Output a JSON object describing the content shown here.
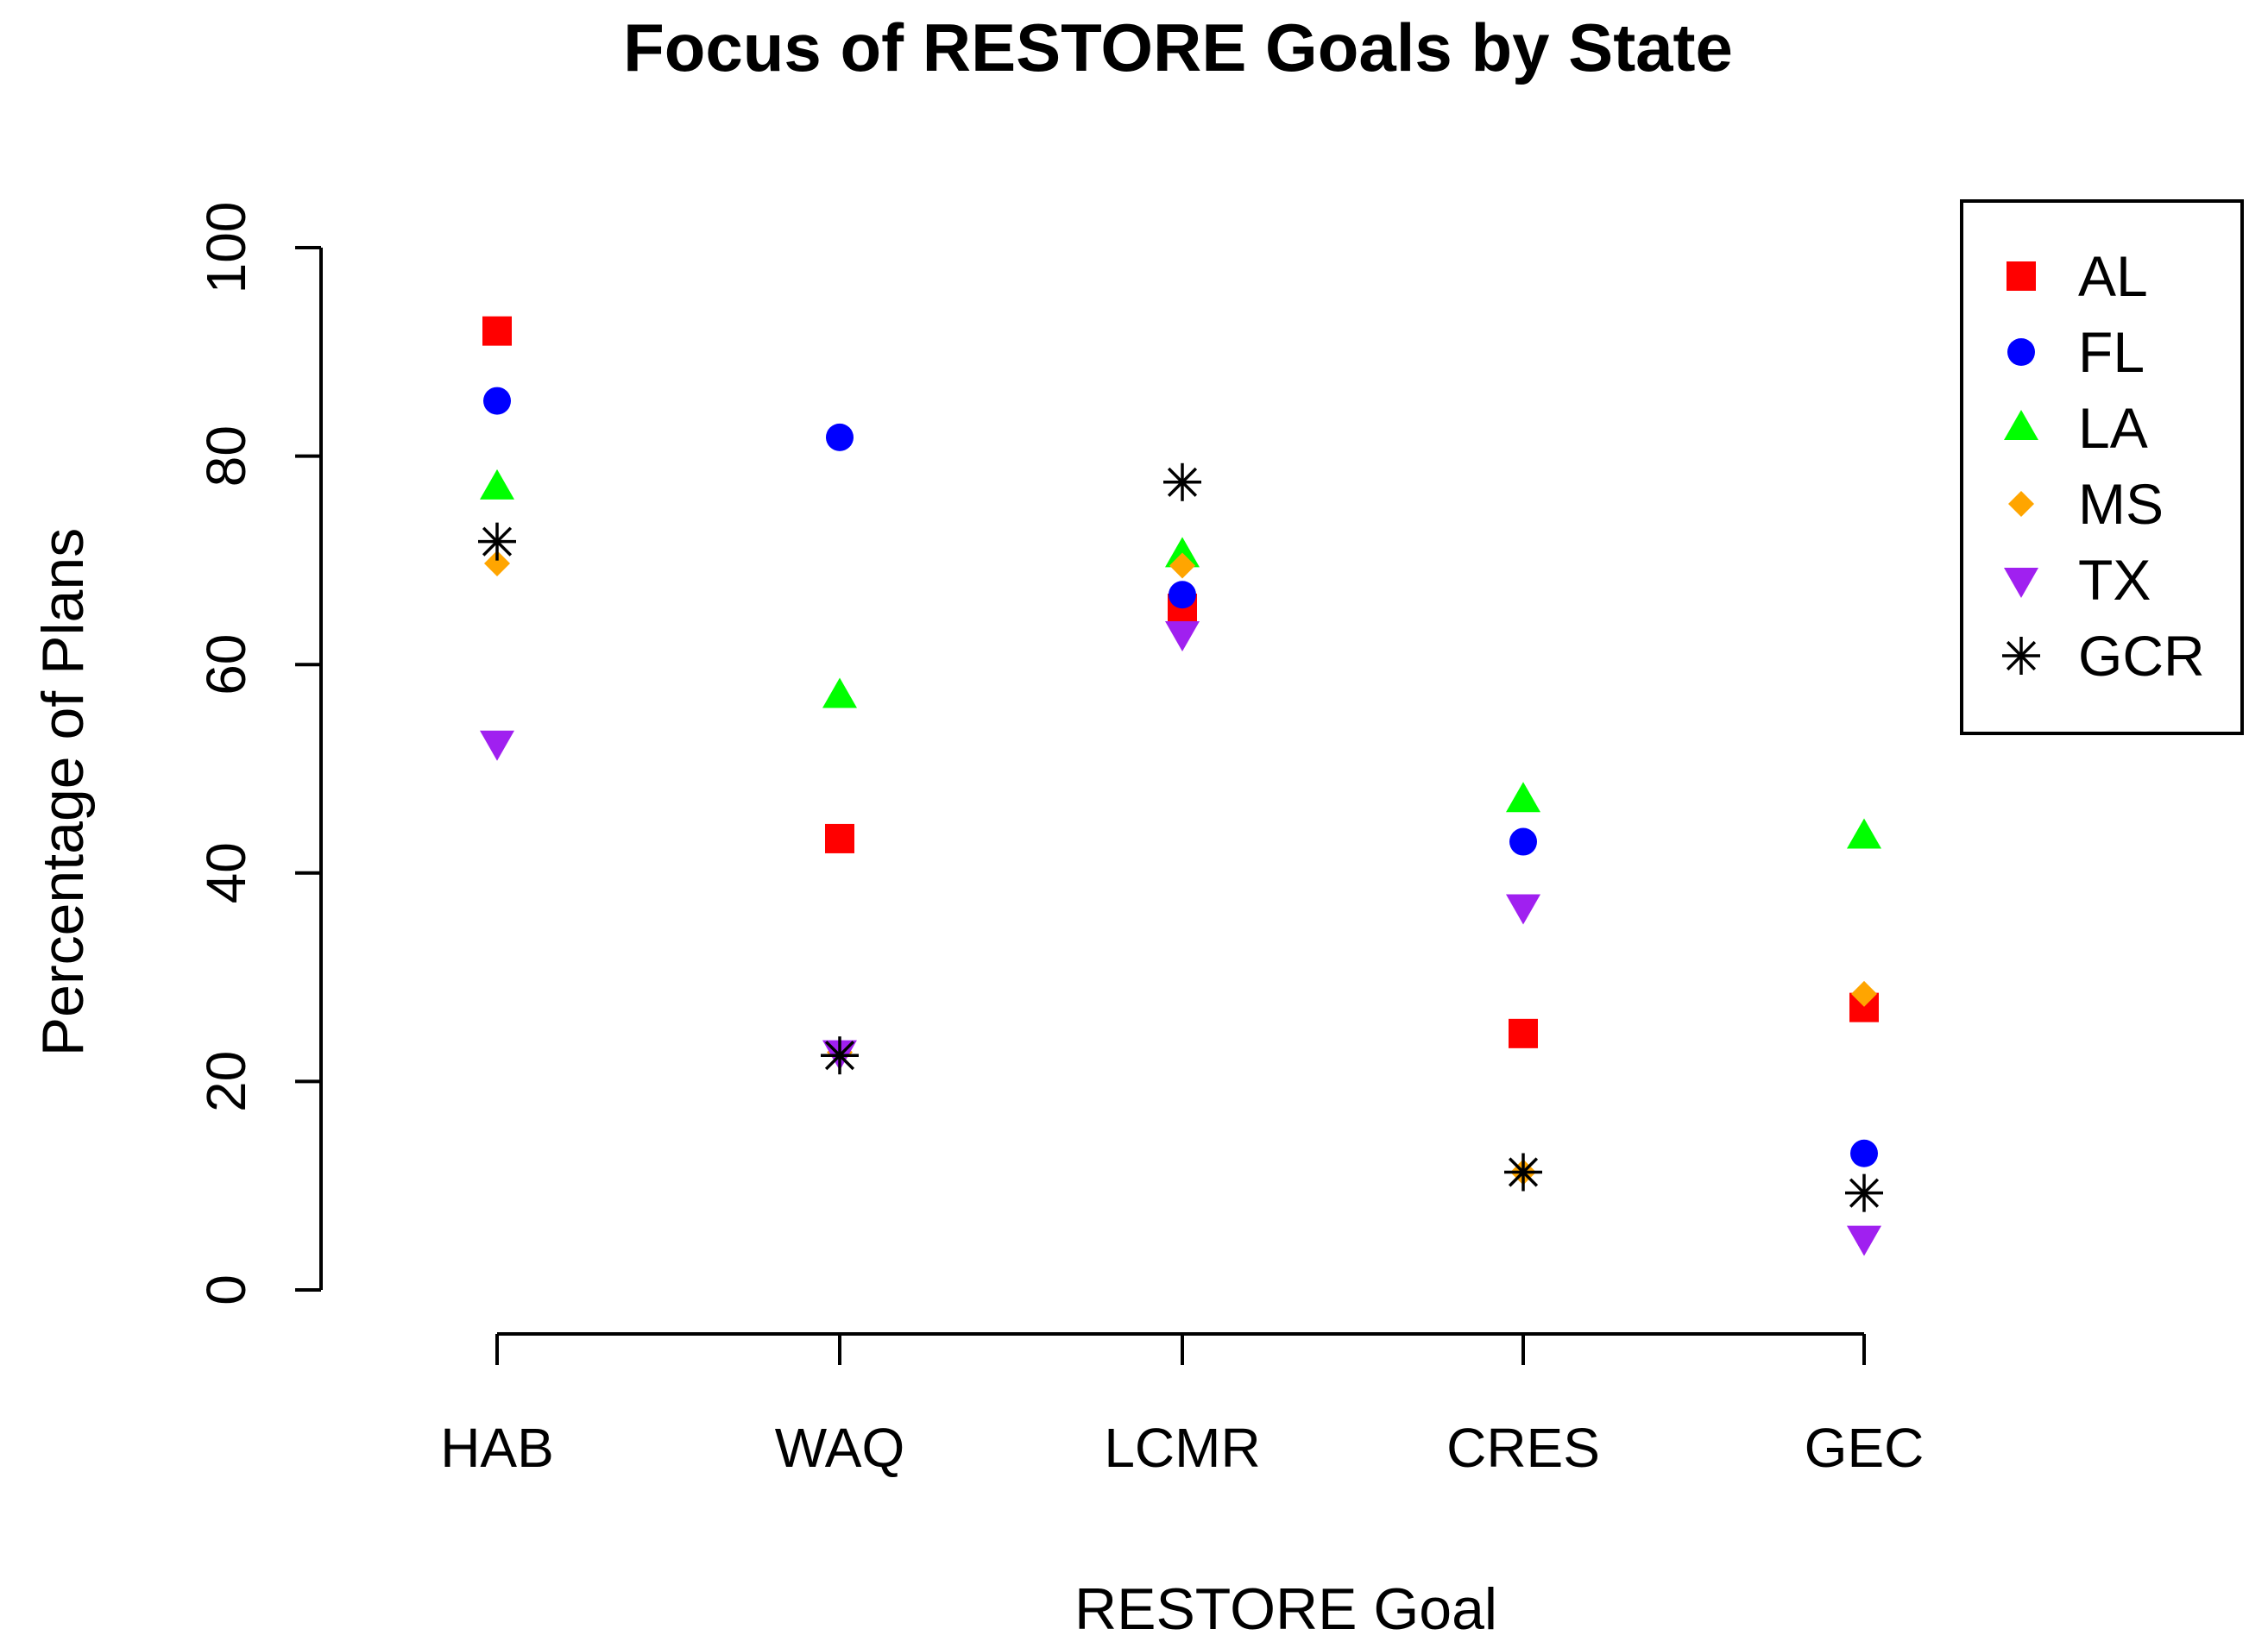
{
  "chart_data": {
    "type": "scatter",
    "title": "Focus of RESTORE Goals by State",
    "xlabel": "RESTORE Goal",
    "ylabel": "Percentage of Plans",
    "categories": [
      "HAB",
      "WAQ",
      "LCMR",
      "CRES",
      "GEC"
    ],
    "ylim": [
      0,
      100
    ],
    "yticks": [
      0,
      20,
      40,
      60,
      80,
      100
    ],
    "grid": false,
    "legend_position": "top-right",
    "series": [
      {
        "name": "AL",
        "color": "#ff0000",
        "marker": "square",
        "values": [
          92,
          43.3,
          65.4,
          24.6,
          27.1
        ]
      },
      {
        "name": "FL",
        "color": "#0000ff",
        "marker": "circle",
        "values": [
          85.3,
          81.8,
          66.7,
          43.0,
          13.1
        ]
      },
      {
        "name": "LA",
        "color": "#00ff00",
        "marker": "triangle-up",
        "values": [
          77,
          57,
          70.5,
          47,
          43.5
        ]
      },
      {
        "name": "MS",
        "color": "#ffa500",
        "marker": "diamond",
        "values": [
          69.7,
          22.8,
          69.5,
          11.3,
          28.4
        ]
      },
      {
        "name": "TX",
        "color": "#a020f0",
        "marker": "triangle-down",
        "values": [
          52.5,
          22.8,
          63.0,
          36.8,
          5.0
        ]
      },
      {
        "name": "GCR",
        "color": "#000000",
        "marker": "asterisk",
        "values": [
          71.8,
          22.5,
          77.5,
          11.3,
          9.3
        ]
      }
    ]
  }
}
